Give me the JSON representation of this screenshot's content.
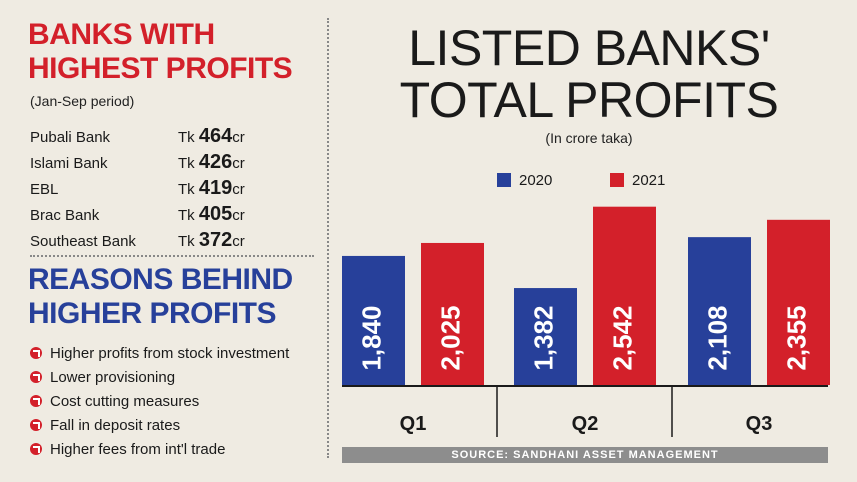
{
  "left_panel": {
    "top_heading": "BANKS WITH HIGHEST PROFITS",
    "period": "(Jan-Sep period)",
    "banks": [
      {
        "name": "Pubali Bank",
        "tk": "Tk ",
        "value": "464",
        "unit": "cr"
      },
      {
        "name": "Islami Bank",
        "tk": "Tk ",
        "value": "426",
        "unit": "cr"
      },
      {
        "name": "EBL",
        "tk": "Tk ",
        "value": "419",
        "unit": "cr"
      },
      {
        "name": "Brac Bank",
        "tk": "Tk ",
        "value": "405",
        "unit": "cr"
      },
      {
        "name": "Southeast Bank",
        "tk": "Tk ",
        "value": "372",
        "unit": "cr"
      }
    ],
    "reasons_heading": "REASONS BEHIND HIGHER PROFITS",
    "reasons": [
      "Higher profits from stock investment",
      "Lower provisioning",
      "Cost cutting measures",
      "Fall in deposit rates",
      "Higher fees from int'l trade"
    ]
  },
  "colors": {
    "series_2020": "#27409a",
    "series_2021": "#d3202a",
    "background": "#efebe2"
  },
  "source": "SOURCE: SANDHANI ASSET MANAGEMENT",
  "chart_data": {
    "type": "bar",
    "title": "LISTED BANKS' TOTAL PROFITS",
    "subtitle": "(In crore taka)",
    "categories": [
      "Q1",
      "Q2",
      "Q3"
    ],
    "series": [
      {
        "name": "2020",
        "values": [
          1840,
          1382,
          2108
        ],
        "labels": [
          "1,840",
          "1,382",
          "2,108"
        ]
      },
      {
        "name": "2021",
        "values": [
          2025,
          2542,
          2355
        ],
        "labels": [
          "2,025",
          "2,542",
          "2,355"
        ]
      }
    ],
    "ylim": [
      0,
      2780
    ],
    "grid": false,
    "legend": "top-center"
  }
}
